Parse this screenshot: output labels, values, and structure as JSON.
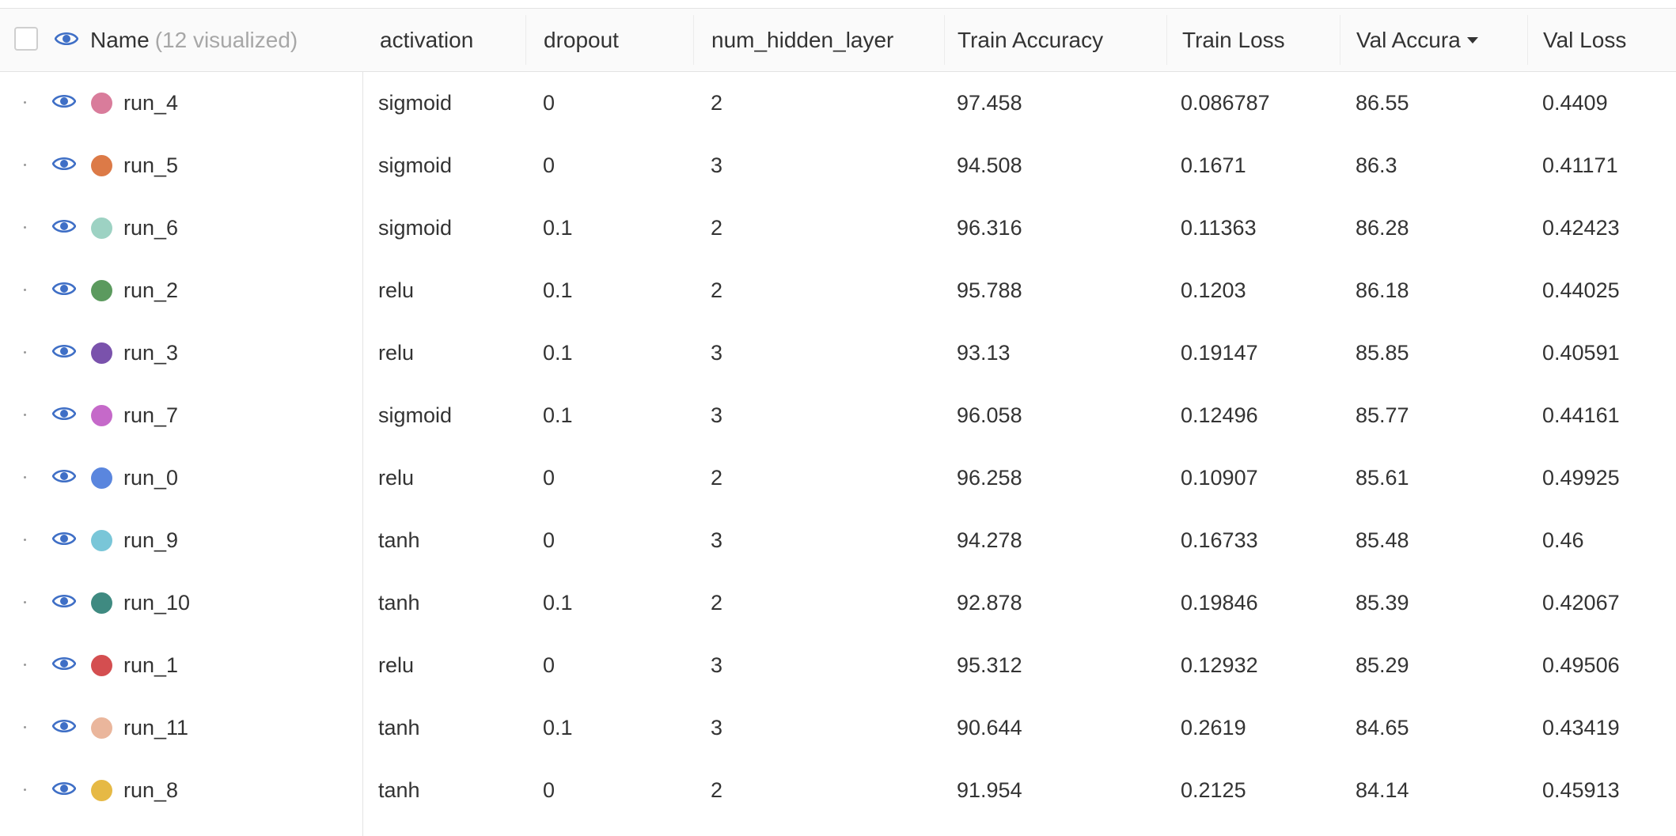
{
  "header": {
    "name_label": "Name",
    "name_count": "(12 visualized)",
    "columns": [
      "activation",
      "dropout",
      "num_hidden_layer",
      "Train Accuracy",
      "Train Loss",
      "Val Accura",
      "Val Loss"
    ]
  },
  "rows": [
    {
      "name": "run_4",
      "color": "#d97c9b",
      "activation": "sigmoid",
      "dropout": "0",
      "layers": "2",
      "train_acc": "97.458",
      "train_loss": "0.086787",
      "val_acc": "86.55",
      "val_loss": "0.4409"
    },
    {
      "name": "run_5",
      "color": "#dc7a47",
      "activation": "sigmoid",
      "dropout": "0",
      "layers": "3",
      "train_acc": "94.508",
      "train_loss": "0.1671",
      "val_acc": "86.3",
      "val_loss": "0.41171"
    },
    {
      "name": "run_6",
      "color": "#9dd2c3",
      "activation": "sigmoid",
      "dropout": "0.1",
      "layers": "2",
      "train_acc": "96.316",
      "train_loss": "0.11363",
      "val_acc": "86.28",
      "val_loss": "0.42423"
    },
    {
      "name": "run_2",
      "color": "#5b9a5e",
      "activation": "relu",
      "dropout": "0.1",
      "layers": "2",
      "train_acc": "95.788",
      "train_loss": "0.1203",
      "val_acc": "86.18",
      "val_loss": "0.44025"
    },
    {
      "name": "run_3",
      "color": "#7a52ac",
      "activation": "relu",
      "dropout": "0.1",
      "layers": "3",
      "train_acc": "93.13",
      "train_loss": "0.19147",
      "val_acc": "85.85",
      "val_loss": "0.40591"
    },
    {
      "name": "run_7",
      "color": "#c569c9",
      "activation": "sigmoid",
      "dropout": "0.1",
      "layers": "3",
      "train_acc": "96.058",
      "train_loss": "0.12496",
      "val_acc": "85.77",
      "val_loss": "0.44161"
    },
    {
      "name": "run_0",
      "color": "#5a86de",
      "activation": "relu",
      "dropout": "0",
      "layers": "2",
      "train_acc": "96.258",
      "train_loss": "0.10907",
      "val_acc": "85.61",
      "val_loss": "0.49925"
    },
    {
      "name": "run_9",
      "color": "#79c6d8",
      "activation": "tanh",
      "dropout": "0",
      "layers": "3",
      "train_acc": "94.278",
      "train_loss": "0.16733",
      "val_acc": "85.48",
      "val_loss": "0.46"
    },
    {
      "name": "run_10",
      "color": "#3f8a81",
      "activation": "tanh",
      "dropout": "0.1",
      "layers": "2",
      "train_acc": "92.878",
      "train_loss": "0.19846",
      "val_acc": "85.39",
      "val_loss": "0.42067"
    },
    {
      "name": "run_1",
      "color": "#d44e50",
      "activation": "relu",
      "dropout": "0",
      "layers": "3",
      "train_acc": "95.312",
      "train_loss": "0.12932",
      "val_acc": "85.29",
      "val_loss": "0.49506"
    },
    {
      "name": "run_11",
      "color": "#eab69c",
      "activation": "tanh",
      "dropout": "0.1",
      "layers": "3",
      "train_acc": "90.644",
      "train_loss": "0.2619",
      "val_acc": "84.65",
      "val_loss": "0.43419"
    },
    {
      "name": "run_8",
      "color": "#e6b945",
      "activation": "tanh",
      "dropout": "0",
      "layers": "2",
      "train_acc": "91.954",
      "train_loss": "0.2125",
      "val_acc": "84.14",
      "val_loss": "0.45913"
    }
  ],
  "icons": {
    "visibility": "eye-icon",
    "selection": "checkbox",
    "sort": "caret-down-icon"
  },
  "accent_color": "#3f6fc6"
}
